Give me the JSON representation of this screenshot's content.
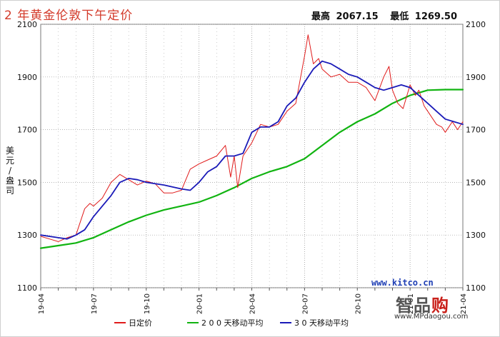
{
  "header": {
    "title": "2 年黄金伦敦下午定价",
    "high_label": "最高",
    "high_value": "2067.15",
    "low_label": "最低",
    "low_value": "1269.50"
  },
  "source_label": "www.kitco.cn",
  "watermark": {
    "logo_a": "智",
    "logo_b": "品",
    "logo_c": "购",
    "url": "www.MPdaogou.com"
  },
  "colors": {
    "daily": "#e01b1b",
    "ma200": "#11b411",
    "ma30": "#1a1ab8",
    "grid": "#9a9a9a"
  },
  "chart_data": {
    "type": "line",
    "title": "2 年黄金伦敦下午定价",
    "ylabel": "美元/盎司",
    "ylabel_chars": [
      "美",
      "元",
      "/",
      "盎",
      "司"
    ],
    "ylim": [
      1100,
      2100
    ],
    "yticks": [
      1100,
      1300,
      1500,
      1700,
      1900,
      2100
    ],
    "ytick_labels": [
      "1100",
      "1300",
      "1500",
      "1700",
      "1900",
      "2100"
    ],
    "xlim": [
      0,
      24
    ],
    "xticks": [
      0,
      3,
      6,
      9,
      12,
      15,
      18,
      21,
      24
    ],
    "xtick_labels": [
      "19-04",
      "19-07",
      "19-10",
      "20-01",
      "20-04",
      "20-07",
      "20-10",
      "21-01",
      "21-04"
    ],
    "grid": true,
    "legend_position": "bottom",
    "series": [
      {
        "name": "日定价",
        "color": "#e01b1b",
        "x": [
          0,
          0.5,
          1,
          1.5,
          2,
          2.5,
          2.8,
          3,
          3.5,
          4,
          4.5,
          5,
          5.5,
          6,
          6.5,
          7,
          7.5,
          8,
          8.5,
          9,
          9.5,
          10,
          10.5,
          10.8,
          11,
          11.2,
          11.5,
          12,
          12.5,
          13,
          13.5,
          14,
          14.5,
          15,
          15.2,
          15.5,
          15.8,
          16,
          16.5,
          17,
          17.5,
          18,
          18.5,
          19,
          19.5,
          19.8,
          20,
          20.3,
          20.6,
          21,
          21.3,
          21.5,
          21.8,
          22,
          22.5,
          22.8,
          23,
          23.4,
          23.7,
          24
        ],
        "y": [
          1295,
          1285,
          1275,
          1290,
          1300,
          1400,
          1420,
          1410,
          1440,
          1500,
          1530,
          1510,
          1490,
          1505,
          1495,
          1460,
          1460,
          1470,
          1550,
          1570,
          1585,
          1600,
          1640,
          1520,
          1600,
          1480,
          1600,
          1650,
          1720,
          1710,
          1720,
          1770,
          1800,
          1980,
          2060,
          1950,
          1970,
          1930,
          1900,
          1910,
          1880,
          1880,
          1860,
          1810,
          1900,
          1940,
          1850,
          1800,
          1780,
          1870,
          1830,
          1850,
          1790,
          1770,
          1720,
          1710,
          1690,
          1730,
          1700,
          1730
        ]
      },
      {
        "name": "200 天移动平均",
        "color": "#11b411",
        "x": [
          0,
          1,
          2,
          3,
          4,
          5,
          6,
          7,
          8,
          9,
          10,
          11,
          12,
          13,
          14,
          15,
          16,
          17,
          18,
          19,
          20,
          21,
          22,
          23,
          24
        ],
        "y": [
          1250,
          1260,
          1270,
          1290,
          1320,
          1350,
          1375,
          1395,
          1410,
          1425,
          1450,
          1480,
          1515,
          1540,
          1560,
          1590,
          1640,
          1690,
          1730,
          1760,
          1800,
          1830,
          1850,
          1852,
          1852
        ]
      },
      {
        "name": "30 天移动平均",
        "color": "#1a1ab8",
        "x": [
          0,
          1,
          1.5,
          2,
          2.5,
          3,
          4,
          4.5,
          5,
          5.5,
          6,
          7,
          8,
          8.5,
          9,
          9.5,
          10,
          10.5,
          11,
          11.5,
          12,
          12.5,
          13,
          13.5,
          14,
          14.5,
          15,
          15.5,
          16,
          16.5,
          17,
          17.5,
          18,
          18.5,
          19,
          19.5,
          20,
          20.5,
          21,
          21.5,
          22,
          22.5,
          23,
          23.5,
          24
        ],
        "y": [
          1300,
          1290,
          1285,
          1300,
          1320,
          1370,
          1450,
          1500,
          1515,
          1510,
          1500,
          1490,
          1475,
          1470,
          1500,
          1540,
          1560,
          1600,
          1600,
          1610,
          1690,
          1710,
          1710,
          1730,
          1790,
          1820,
          1880,
          1930,
          1960,
          1950,
          1930,
          1910,
          1900,
          1880,
          1860,
          1850,
          1860,
          1870,
          1860,
          1830,
          1800,
          1770,
          1740,
          1730,
          1720
        ]
      }
    ]
  },
  "legend": [
    {
      "label": "日定价",
      "color": "#e01b1b"
    },
    {
      "label": "2 0 0 天移动平均",
      "color": "#11b411"
    },
    {
      "label": "3 0 天移动平均",
      "color": "#1a1ab8"
    }
  ]
}
